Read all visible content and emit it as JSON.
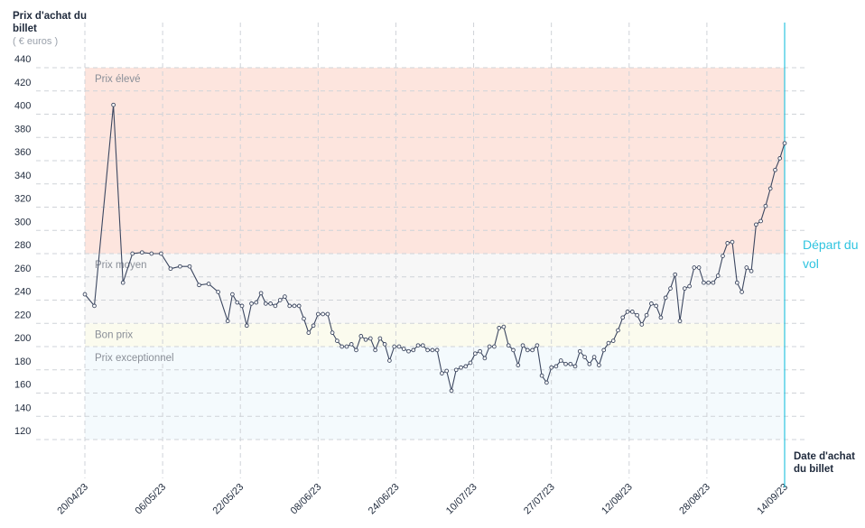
{
  "chart_data": {
    "type": "line",
    "ylabel": "Prix d'achat du billet",
    "yunit": "( € euros )",
    "xlabel": "Date d'achat du billet",
    "departure_label": "Départ du vol",
    "ylim": [
      105,
      455
    ],
    "yticks": [
      120,
      140,
      160,
      180,
      200,
      220,
      240,
      260,
      280,
      300,
      320,
      340,
      360,
      380,
      400,
      420,
      440
    ],
    "x_start": "2023-04-20",
    "x_end": "2023-09-14",
    "xtick_labels": [
      "20/04/23",
      "06/05/23",
      "22/05/23",
      "08/06/23",
      "24/06/23",
      "10/07/23",
      "27/07/23",
      "12/08/23",
      "28/08/23",
      "14/09/23"
    ],
    "grid": true,
    "zones": [
      {
        "name": "Prix élevé",
        "from": 280,
        "to": 440,
        "color": "#fde5de"
      },
      {
        "name": "Prix moyen",
        "from": 220,
        "to": 280,
        "color": "#f7f7f7"
      },
      {
        "name": "Bon prix",
        "from": 200,
        "to": 220,
        "color": "#fbfbee"
      },
      {
        "name": "Prix exceptionnel",
        "from": 120,
        "to": 200,
        "color": "#f4fafd"
      }
    ],
    "colors": {
      "line": "#3c4760",
      "marker_fill": "#ffffff",
      "departure": "#2ec4e0",
      "grid": "#cfd3d8"
    },
    "series": [
      {
        "values": [
          [
            "2023-04-20",
            245
          ],
          [
            "2023-04-22",
            235
          ],
          [
            "2023-04-26",
            408
          ],
          [
            "2023-04-28",
            255
          ],
          [
            "2023-04-30",
            280
          ],
          [
            "2023-05-02",
            281
          ],
          [
            "2023-05-04",
            280
          ],
          [
            "2023-05-06",
            280
          ],
          [
            "2023-05-08",
            267
          ],
          [
            "2023-05-10",
            269
          ],
          [
            "2023-05-12",
            269
          ],
          [
            "2023-05-14",
            253
          ],
          [
            "2023-05-16",
            254
          ],
          [
            "2023-05-18",
            247
          ],
          [
            "2023-05-20",
            222
          ],
          [
            "2023-05-21",
            245
          ],
          [
            "2023-05-22",
            238
          ],
          [
            "2023-05-23",
            235
          ],
          [
            "2023-05-24",
            218
          ],
          [
            "2023-05-25",
            237
          ],
          [
            "2023-05-26",
            238
          ],
          [
            "2023-05-27",
            246
          ],
          [
            "2023-05-28",
            237
          ],
          [
            "2023-05-29",
            237
          ],
          [
            "2023-05-30",
            235
          ],
          [
            "2023-05-31",
            240
          ],
          [
            "2023-06-01",
            243
          ],
          [
            "2023-06-02",
            235
          ],
          [
            "2023-06-03",
            235
          ],
          [
            "2023-06-04",
            235
          ],
          [
            "2023-06-05",
            224
          ],
          [
            "2023-06-06",
            212
          ],
          [
            "2023-06-07",
            218
          ],
          [
            "2023-06-08",
            228
          ],
          [
            "2023-06-09",
            228
          ],
          [
            "2023-06-10",
            228
          ],
          [
            "2023-06-11",
            212
          ],
          [
            "2023-06-12",
            205
          ],
          [
            "2023-06-13",
            200
          ],
          [
            "2023-06-14",
            200
          ],
          [
            "2023-06-15",
            202
          ],
          [
            "2023-06-16",
            197
          ],
          [
            "2023-06-17",
            209
          ],
          [
            "2023-06-18",
            206
          ],
          [
            "2023-06-19",
            207
          ],
          [
            "2023-06-20",
            197
          ],
          [
            "2023-06-21",
            207
          ],
          [
            "2023-06-22",
            202
          ],
          [
            "2023-06-23",
            188
          ],
          [
            "2023-06-24",
            200
          ],
          [
            "2023-06-25",
            200
          ],
          [
            "2023-06-26",
            198
          ],
          [
            "2023-06-27",
            196
          ],
          [
            "2023-06-28",
            197
          ],
          [
            "2023-06-29",
            201
          ],
          [
            "2023-06-30",
            201
          ],
          [
            "2023-07-01",
            197
          ],
          [
            "2023-07-02",
            197
          ],
          [
            "2023-07-03",
            197
          ],
          [
            "2023-07-04",
            177
          ],
          [
            "2023-07-05",
            179
          ],
          [
            "2023-07-06",
            162
          ],
          [
            "2023-07-07",
            180
          ],
          [
            "2023-07-08",
            182
          ],
          [
            "2023-07-09",
            183
          ],
          [
            "2023-07-10",
            186
          ],
          [
            "2023-07-11",
            194
          ],
          [
            "2023-07-12",
            196
          ],
          [
            "2023-07-13",
            190
          ],
          [
            "2023-07-14",
            200
          ],
          [
            "2023-07-15",
            200
          ],
          [
            "2023-07-16",
            216
          ],
          [
            "2023-07-17",
            217
          ],
          [
            "2023-07-18",
            201
          ],
          [
            "2023-07-19",
            197
          ],
          [
            "2023-07-20",
            184
          ],
          [
            "2023-07-21",
            201
          ],
          [
            "2023-07-22",
            197
          ],
          [
            "2023-07-23",
            197
          ],
          [
            "2023-07-24",
            201
          ],
          [
            "2023-07-25",
            175
          ],
          [
            "2023-07-26",
            169
          ],
          [
            "2023-07-27",
            182
          ],
          [
            "2023-07-28",
            183
          ],
          [
            "2023-07-29",
            188
          ],
          [
            "2023-07-30",
            185
          ],
          [
            "2023-07-31",
            185
          ],
          [
            "2023-08-01",
            183
          ],
          [
            "2023-08-02",
            196
          ],
          [
            "2023-08-03",
            191
          ],
          [
            "2023-08-04",
            185
          ],
          [
            "2023-08-05",
            191
          ],
          [
            "2023-08-06",
            184
          ],
          [
            "2023-08-07",
            197
          ],
          [
            "2023-08-08",
            203
          ],
          [
            "2023-08-09",
            205
          ],
          [
            "2023-08-10",
            214
          ],
          [
            "2023-08-11",
            225
          ],
          [
            "2023-08-12",
            230
          ],
          [
            "2023-08-13",
            230
          ],
          [
            "2023-08-14",
            227
          ],
          [
            "2023-08-15",
            219
          ],
          [
            "2023-08-16",
            227
          ],
          [
            "2023-08-17",
            237
          ],
          [
            "2023-08-18",
            235
          ],
          [
            "2023-08-19",
            225
          ],
          [
            "2023-08-20",
            242
          ],
          [
            "2023-08-21",
            250
          ],
          [
            "2023-08-22",
            262
          ],
          [
            "2023-08-23",
            222
          ],
          [
            "2023-08-24",
            250
          ],
          [
            "2023-08-25",
            252
          ],
          [
            "2023-08-26",
            268
          ],
          [
            "2023-08-27",
            268
          ],
          [
            "2023-08-28",
            255
          ],
          [
            "2023-08-29",
            255
          ],
          [
            "2023-08-30",
            255
          ],
          [
            "2023-08-31",
            261
          ],
          [
            "2023-09-01",
            278
          ],
          [
            "2023-09-02",
            289
          ],
          [
            "2023-09-03",
            290
          ],
          [
            "2023-09-04",
            255
          ],
          [
            "2023-09-05",
            247
          ],
          [
            "2023-09-06",
            268
          ],
          [
            "2023-09-07",
            265
          ],
          [
            "2023-09-08",
            305
          ],
          [
            "2023-09-09",
            308
          ],
          [
            "2023-09-10",
            321
          ],
          [
            "2023-09-11",
            336
          ],
          [
            "2023-09-12",
            352
          ],
          [
            "2023-09-13",
            362
          ],
          [
            "2023-09-14",
            375
          ]
        ]
      }
    ]
  }
}
